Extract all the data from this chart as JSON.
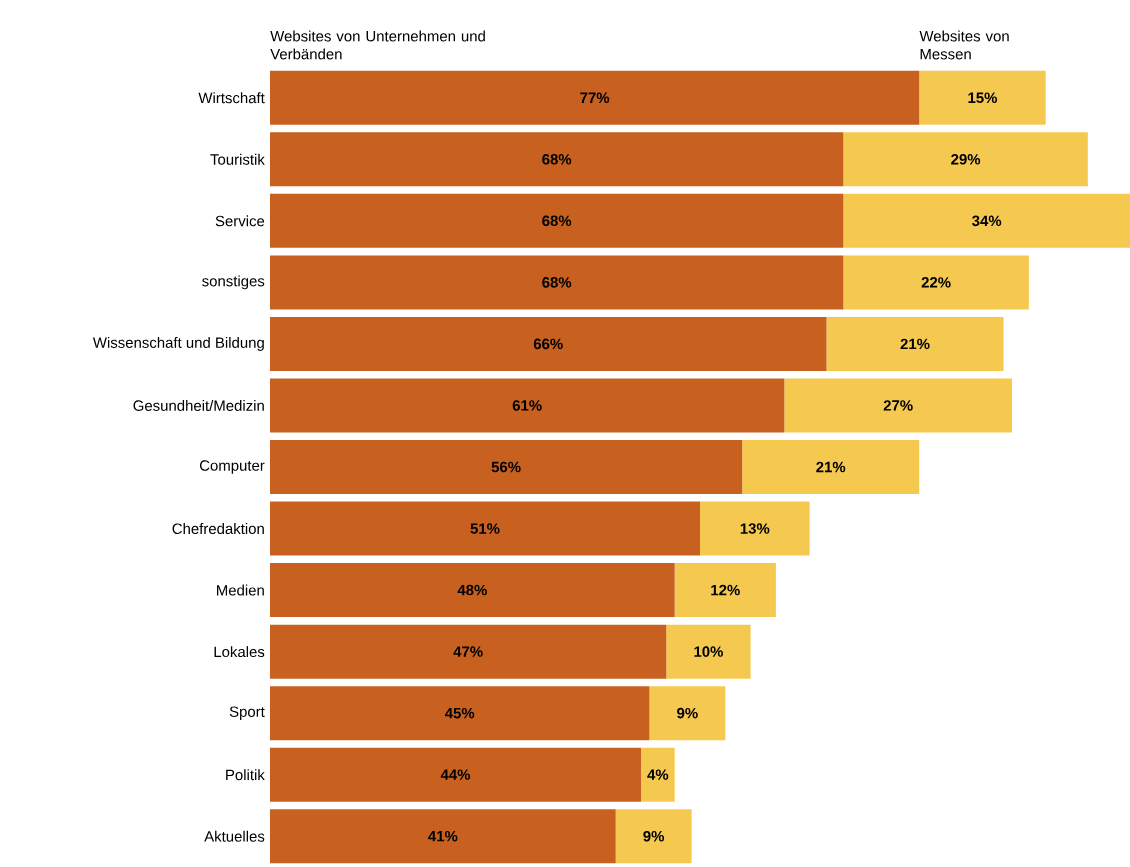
{
  "chart_data": {
    "type": "bar",
    "orientation": "horizontal",
    "stacked": true,
    "categories": [
      "Wirtschaft",
      "Touristik",
      "Service",
      "sonstiges",
      "Wissenschaft und Bildung",
      "Gesundheit/Medizin",
      "Computer",
      "Chefredaktion",
      "Medien",
      "Lokales",
      "Sport",
      "Politik",
      "Aktuelles"
    ],
    "series": [
      {
        "name": "Websites von Unternehmen und Verbänden",
        "color": "#c8601f",
        "values": [
          77,
          68,
          68,
          68,
          66,
          61,
          56,
          51,
          48,
          47,
          45,
          44,
          41
        ],
        "value_labels": [
          "77%",
          "68%",
          "68%",
          "68%",
          "66%",
          "61%",
          "56%",
          "51%",
          "48%",
          "47%",
          "45%",
          "44%",
          "41%"
        ]
      },
      {
        "name": "Websites von Messen",
        "color": "#f5c850",
        "values": [
          15,
          29,
          34,
          22,
          21,
          27,
          21,
          13,
          12,
          10,
          9,
          4,
          9
        ],
        "value_labels": [
          "15%",
          "29%",
          "34%",
          "22%",
          "21%",
          "27%",
          "21%",
          "13%",
          "12%",
          "10%",
          "9%",
          "4%",
          "9%"
        ]
      }
    ]
  }
}
